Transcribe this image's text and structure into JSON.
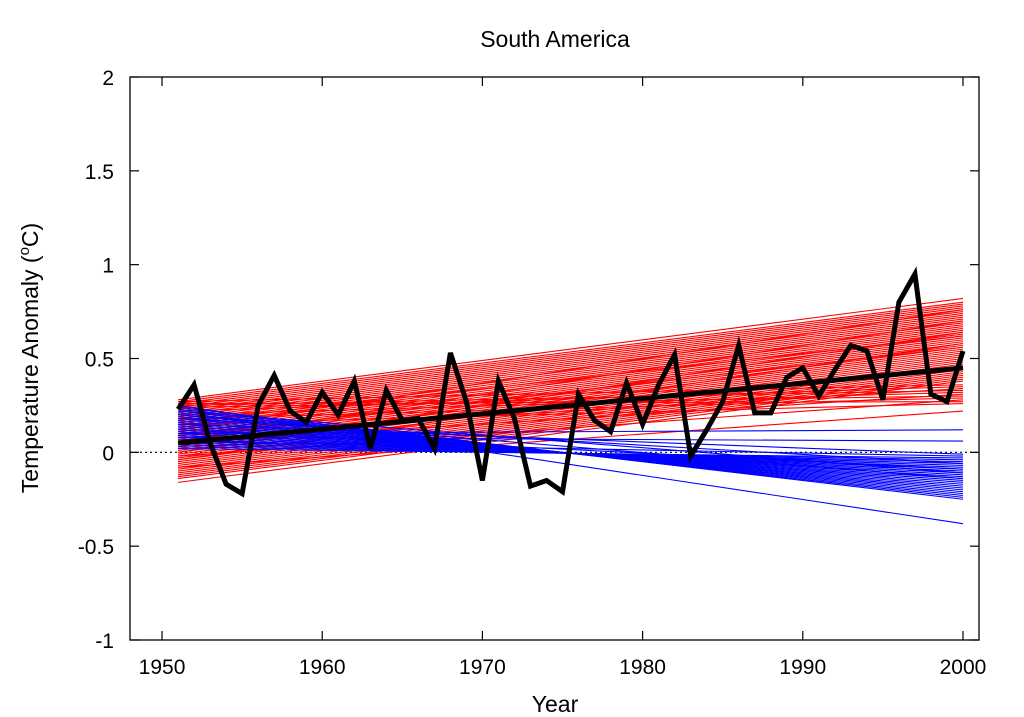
{
  "chart_data": {
    "type": "line",
    "title": "South America",
    "xlabel": "Year",
    "ylabel": "Temperature Anomaly (",
    "ylabel_super": "o",
    "ylabel_tail": "C)",
    "xlim": [
      1948,
      2001
    ],
    "ylim": [
      -1,
      2
    ],
    "xticks": [
      1950,
      1960,
      1970,
      1980,
      1990,
      2000
    ],
    "yticks": [
      -1,
      -0.5,
      0,
      0.5,
      1,
      1.5,
      2
    ],
    "ytick_labels": [
      "-1",
      "-0.5",
      "0",
      "0.5",
      "1",
      "1.5",
      "2"
    ],
    "grid": false,
    "legend": "none",
    "zero_line": {
      "y": 0,
      "style": "dotted",
      "color": "#000000"
    },
    "colors": {
      "warming": "#ff0000",
      "cooling": "#0000ff",
      "observed": "#000000",
      "trend": "#000000"
    },
    "observed": {
      "x": [
        1951,
        1952,
        1953,
        1954,
        1955,
        1956,
        1957,
        1958,
        1959,
        1960,
        1961,
        1962,
        1963,
        1964,
        1965,
        1966,
        1967,
        1968,
        1969,
        1970,
        1971,
        1972,
        1973,
        1974,
        1975,
        1976,
        1977,
        1978,
        1979,
        1980,
        1981,
        1982,
        1983,
        1984,
        1985,
        1986,
        1987,
        1988,
        1989,
        1990,
        1991,
        1992,
        1993,
        1994,
        1995,
        1996,
        1997,
        1998,
        1999,
        2000
      ],
      "y": [
        0.23,
        0.36,
        0.05,
        -0.17,
        -0.22,
        0.25,
        0.41,
        0.22,
        0.16,
        0.32,
        0.2,
        0.38,
        0.02,
        0.33,
        0.17,
        0.18,
        0.02,
        0.53,
        0.27,
        -0.15,
        0.38,
        0.18,
        -0.18,
        -0.15,
        -0.21,
        0.31,
        0.17,
        0.11,
        0.37,
        0.15,
        0.36,
        0.52,
        -0.02,
        0.12,
        0.27,
        0.57,
        0.21,
        0.21,
        0.4,
        0.45,
        0.3,
        0.44,
        0.57,
        0.54,
        0.28,
        0.8,
        0.95,
        0.31,
        0.27,
        0.54
      ]
    },
    "trend": {
      "x": [
        1951,
        2000
      ],
      "y": [
        0.05,
        0.45
      ]
    },
    "warming_trends": [
      [
        0.28,
        0.82
      ],
      [
        0.27,
        0.8
      ],
      [
        0.26,
        0.79
      ],
      [
        0.25,
        0.78
      ],
      [
        0.24,
        0.77
      ],
      [
        0.23,
        0.76
      ],
      [
        0.22,
        0.75
      ],
      [
        0.21,
        0.74
      ],
      [
        0.2,
        0.73
      ],
      [
        0.19,
        0.72
      ],
      [
        0.18,
        0.71
      ],
      [
        0.17,
        0.7
      ],
      [
        0.16,
        0.69
      ],
      [
        0.15,
        0.68
      ],
      [
        0.14,
        0.67
      ],
      [
        0.13,
        0.66
      ],
      [
        0.12,
        0.65
      ],
      [
        0.11,
        0.64
      ],
      [
        0.1,
        0.63
      ],
      [
        0.09,
        0.62
      ],
      [
        0.08,
        0.61
      ],
      [
        0.07,
        0.6
      ],
      [
        0.06,
        0.59
      ],
      [
        0.05,
        0.58
      ],
      [
        0.04,
        0.57
      ],
      [
        0.03,
        0.56
      ],
      [
        0.02,
        0.55
      ],
      [
        0.01,
        0.54
      ],
      [
        0.0,
        0.53
      ],
      [
        -0.01,
        0.52
      ],
      [
        -0.02,
        0.51
      ],
      [
        -0.03,
        0.5
      ],
      [
        -0.04,
        0.49
      ],
      [
        -0.05,
        0.48
      ],
      [
        -0.06,
        0.47
      ],
      [
        -0.07,
        0.46
      ],
      [
        -0.08,
        0.45
      ],
      [
        -0.09,
        0.44
      ],
      [
        -0.1,
        0.43
      ],
      [
        -0.11,
        0.42
      ],
      [
        -0.12,
        0.41
      ],
      [
        -0.13,
        0.4
      ],
      [
        -0.14,
        0.39
      ],
      [
        -0.16,
        0.38
      ],
      [
        0.27,
        0.36
      ],
      [
        0.25,
        0.33
      ],
      [
        0.24,
        0.3
      ],
      [
        0.26,
        0.27
      ],
      [
        0.22,
        0.35
      ],
      [
        0.2,
        0.32
      ],
      [
        0.18,
        0.29
      ],
      [
        0.15,
        0.26
      ],
      [
        0.1,
        0.34
      ],
      [
        0.05,
        0.31
      ],
      [
        -0.02,
        0.28
      ],
      [
        -0.08,
        0.22
      ],
      [
        0.12,
        0.76
      ],
      [
        0.06,
        0.7
      ],
      [
        0.0,
        0.64
      ],
      [
        -0.04,
        0.58
      ],
      [
        0.16,
        0.62
      ],
      [
        0.09,
        0.56
      ]
    ],
    "cooling_trends": [
      [
        0.25,
        -0.38
      ],
      [
        0.24,
        -0.25
      ],
      [
        0.23,
        -0.24
      ],
      [
        0.22,
        -0.23
      ],
      [
        0.21,
        -0.22
      ],
      [
        0.2,
        -0.21
      ],
      [
        0.19,
        -0.2
      ],
      [
        0.18,
        -0.19
      ],
      [
        0.17,
        -0.18
      ],
      [
        0.16,
        -0.17
      ],
      [
        0.15,
        -0.16
      ],
      [
        0.14,
        -0.15
      ],
      [
        0.13,
        -0.14
      ],
      [
        0.12,
        -0.13
      ],
      [
        0.11,
        -0.12
      ],
      [
        0.1,
        -0.11
      ],
      [
        0.09,
        -0.1
      ],
      [
        0.08,
        -0.09
      ],
      [
        0.07,
        -0.08
      ],
      [
        0.06,
        -0.07
      ],
      [
        0.05,
        -0.06
      ],
      [
        0.04,
        -0.05
      ],
      [
        0.03,
        -0.04
      ],
      [
        0.02,
        -0.03
      ],
      [
        0.1,
        0.12
      ],
      [
        0.08,
        0.06
      ],
      [
        0.15,
        -0.01
      ],
      [
        0.2,
        -0.14
      ],
      [
        0.06,
        -0.02
      ],
      [
        0.12,
        -0.09
      ],
      [
        0.18,
        -0.06
      ],
      [
        0.22,
        -0.11
      ]
    ]
  }
}
